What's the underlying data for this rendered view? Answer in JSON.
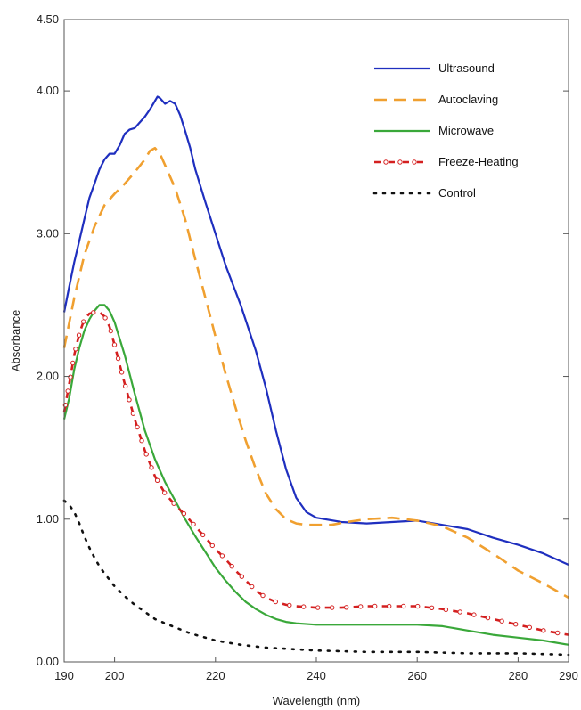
{
  "chart_data": {
    "type": "line",
    "title": "",
    "xlabel": "Wavelength (nm)",
    "ylabel": "Absorbance",
    "xlim": [
      190,
      290
    ],
    "ylim": [
      0,
      4.5
    ],
    "x_ticks": [
      190,
      200,
      220,
      240,
      260,
      280,
      290
    ],
    "y_ticks": [
      0,
      1,
      2,
      3,
      4,
      4.5
    ],
    "y_tick_labels": [
      "0.00",
      "1.00",
      "2.00",
      "3.00",
      "4.00",
      "4.50"
    ],
    "grid": false,
    "legend_position": "top-right",
    "series": [
      {
        "name": "Ultrasound",
        "color": "#1f2fbf",
        "style": "solid",
        "points": [
          [
            190,
            2.45
          ],
          [
            191,
            2.63
          ],
          [
            192,
            2.8
          ],
          [
            193,
            2.95
          ],
          [
            194,
            3.1
          ],
          [
            195,
            3.25
          ],
          [
            196,
            3.35
          ],
          [
            197,
            3.45
          ],
          [
            198,
            3.52
          ],
          [
            199,
            3.56
          ],
          [
            200,
            3.56
          ],
          [
            201,
            3.62
          ],
          [
            202,
            3.7
          ],
          [
            203,
            3.73
          ],
          [
            204,
            3.74
          ],
          [
            205,
            3.78
          ],
          [
            206,
            3.82
          ],
          [
            207,
            3.87
          ],
          [
            208,
            3.93
          ],
          [
            208.5,
            3.96
          ],
          [
            209,
            3.95
          ],
          [
            210,
            3.91
          ],
          [
            211,
            3.93
          ],
          [
            212,
            3.91
          ],
          [
            213,
            3.83
          ],
          [
            214,
            3.72
          ],
          [
            215,
            3.6
          ],
          [
            216,
            3.45
          ],
          [
            218,
            3.22
          ],
          [
            220,
            3.0
          ],
          [
            222,
            2.78
          ],
          [
            225,
            2.5
          ],
          [
            228,
            2.18
          ],
          [
            230,
            1.92
          ],
          [
            232,
            1.62
          ],
          [
            234,
            1.35
          ],
          [
            236,
            1.15
          ],
          [
            238,
            1.05
          ],
          [
            240,
            1.01
          ],
          [
            245,
            0.98
          ],
          [
            250,
            0.97
          ],
          [
            255,
            0.98
          ],
          [
            260,
            0.99
          ],
          [
            265,
            0.96
          ],
          [
            270,
            0.93
          ],
          [
            275,
            0.87
          ],
          [
            280,
            0.82
          ],
          [
            285,
            0.76
          ],
          [
            290,
            0.68
          ]
        ]
      },
      {
        "name": "Autoclaving",
        "color": "#f0a030",
        "style": "dashed",
        "points": [
          [
            190,
            2.2
          ],
          [
            192,
            2.55
          ],
          [
            194,
            2.85
          ],
          [
            196,
            3.05
          ],
          [
            198,
            3.2
          ],
          [
            200,
            3.28
          ],
          [
            202,
            3.35
          ],
          [
            204,
            3.43
          ],
          [
            206,
            3.52
          ],
          [
            207,
            3.58
          ],
          [
            208,
            3.6
          ],
          [
            209,
            3.56
          ],
          [
            210,
            3.48
          ],
          [
            212,
            3.32
          ],
          [
            214,
            3.1
          ],
          [
            216,
            2.82
          ],
          [
            218,
            2.55
          ],
          [
            220,
            2.28
          ],
          [
            222,
            2.02
          ],
          [
            224,
            1.78
          ],
          [
            226,
            1.55
          ],
          [
            228,
            1.35
          ],
          [
            230,
            1.18
          ],
          [
            232,
            1.07
          ],
          [
            234,
            1.0
          ],
          [
            236,
            0.97
          ],
          [
            238,
            0.96
          ],
          [
            240,
            0.96
          ],
          [
            243,
            0.96
          ],
          [
            246,
            0.98
          ],
          [
            250,
            1.0
          ],
          [
            255,
            1.01
          ],
          [
            260,
            0.99
          ],
          [
            265,
            0.95
          ],
          [
            270,
            0.87
          ],
          [
            275,
            0.76
          ],
          [
            280,
            0.64
          ],
          [
            285,
            0.55
          ],
          [
            290,
            0.45
          ]
        ]
      },
      {
        "name": "Microwave",
        "color": "#3aa83a",
        "style": "solid",
        "points": [
          [
            190,
            1.7
          ],
          [
            191,
            1.85
          ],
          [
            192,
            2.05
          ],
          [
            193,
            2.2
          ],
          [
            194,
            2.32
          ],
          [
            195,
            2.4
          ],
          [
            196,
            2.46
          ],
          [
            197,
            2.5
          ],
          [
            198,
            2.5
          ],
          [
            199,
            2.46
          ],
          [
            200,
            2.38
          ],
          [
            202,
            2.15
          ],
          [
            204,
            1.88
          ],
          [
            206,
            1.62
          ],
          [
            208,
            1.42
          ],
          [
            210,
            1.26
          ],
          [
            212,
            1.13
          ],
          [
            214,
            1.0
          ],
          [
            216,
            0.88
          ],
          [
            218,
            0.77
          ],
          [
            220,
            0.66
          ],
          [
            222,
            0.57
          ],
          [
            224,
            0.49
          ],
          [
            226,
            0.42
          ],
          [
            228,
            0.37
          ],
          [
            230,
            0.33
          ],
          [
            232,
            0.3
          ],
          [
            234,
            0.28
          ],
          [
            236,
            0.27
          ],
          [
            240,
            0.26
          ],
          [
            245,
            0.26
          ],
          [
            250,
            0.26
          ],
          [
            255,
            0.26
          ],
          [
            260,
            0.26
          ],
          [
            265,
            0.25
          ],
          [
            270,
            0.22
          ],
          [
            275,
            0.19
          ],
          [
            280,
            0.17
          ],
          [
            285,
            0.15
          ],
          [
            290,
            0.12
          ]
        ]
      },
      {
        "name": "Freeze-Heating",
        "color": "#d42020",
        "style": "dash-circle",
        "points": [
          [
            190,
            1.75
          ],
          [
            191,
            1.95
          ],
          [
            192,
            2.15
          ],
          [
            193,
            2.3
          ],
          [
            194,
            2.4
          ],
          [
            195,
            2.44
          ],
          [
            196,
            2.45
          ],
          [
            197,
            2.45
          ],
          [
            198,
            2.42
          ],
          [
            199,
            2.35
          ],
          [
            200,
            2.22
          ],
          [
            202,
            1.95
          ],
          [
            204,
            1.7
          ],
          [
            206,
            1.48
          ],
          [
            208,
            1.3
          ],
          [
            210,
            1.18
          ],
          [
            212,
            1.1
          ],
          [
            214,
            1.03
          ],
          [
            216,
            0.95
          ],
          [
            218,
            0.87
          ],
          [
            220,
            0.79
          ],
          [
            222,
            0.72
          ],
          [
            224,
            0.64
          ],
          [
            226,
            0.57
          ],
          [
            228,
            0.5
          ],
          [
            230,
            0.45
          ],
          [
            232,
            0.42
          ],
          [
            234,
            0.4
          ],
          [
            236,
            0.39
          ],
          [
            240,
            0.38
          ],
          [
            245,
            0.38
          ],
          [
            250,
            0.39
          ],
          [
            255,
            0.39
          ],
          [
            260,
            0.39
          ],
          [
            265,
            0.37
          ],
          [
            270,
            0.34
          ],
          [
            275,
            0.3
          ],
          [
            280,
            0.26
          ],
          [
            285,
            0.22
          ],
          [
            290,
            0.19
          ]
        ]
      },
      {
        "name": "Control",
        "color": "#111111",
        "style": "dotted",
        "points": [
          [
            190,
            1.13
          ],
          [
            191,
            1.1
          ],
          [
            192,
            1.05
          ],
          [
            193,
            0.97
          ],
          [
            194,
            0.88
          ],
          [
            195,
            0.8
          ],
          [
            196,
            0.73
          ],
          [
            197,
            0.67
          ],
          [
            198,
            0.62
          ],
          [
            200,
            0.53
          ],
          [
            202,
            0.46
          ],
          [
            204,
            0.4
          ],
          [
            206,
            0.35
          ],
          [
            208,
            0.3
          ],
          [
            210,
            0.27
          ],
          [
            215,
            0.2
          ],
          [
            220,
            0.15
          ],
          [
            225,
            0.12
          ],
          [
            230,
            0.1
          ],
          [
            235,
            0.09
          ],
          [
            240,
            0.08
          ],
          [
            250,
            0.07
          ],
          [
            260,
            0.07
          ],
          [
            270,
            0.06
          ],
          [
            280,
            0.06
          ],
          [
            290,
            0.05
          ]
        ]
      }
    ]
  }
}
